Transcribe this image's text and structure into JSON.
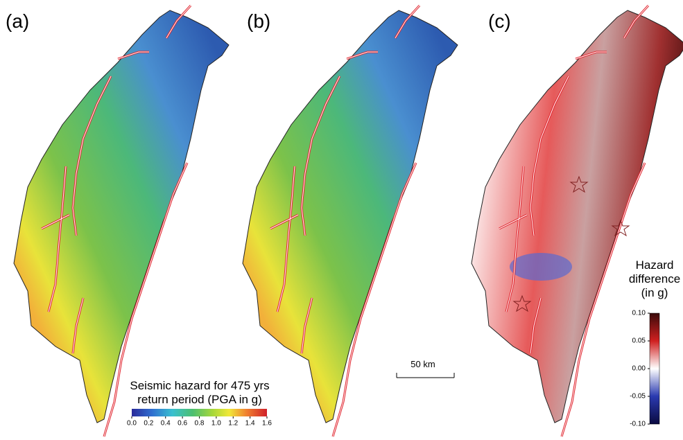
{
  "panels": [
    {
      "label": "(a)"
    },
    {
      "label": "(b)"
    },
    {
      "label": "(c)"
    }
  ],
  "hazard_colorbar": {
    "title_lines": [
      "Seismic hazard for 475 yrs",
      "return period (PGA in g)"
    ],
    "lim": [
      0,
      1.6
    ],
    "ticks": [
      {
        "value": 0,
        "label": "0.0"
      },
      {
        "value": 0.2,
        "label": "0.2"
      },
      {
        "value": 0.4,
        "label": "0.4"
      },
      {
        "value": 0.6,
        "label": "0.6"
      },
      {
        "value": 0.8,
        "label": "0.8"
      },
      {
        "value": 1,
        "label": "1.0"
      },
      {
        "value": 1.2,
        "label": "1.2"
      },
      {
        "value": 1.4,
        "label": "1.4"
      },
      1.6
    ]
  },
  "scale_bar": {
    "label": "50 km"
  },
  "difference_colorbar": {
    "title_lines": [
      "Hazard",
      "difference",
      "(in g)"
    ],
    "lim": [
      -0.1,
      0.1
    ],
    "ticks": [
      {
        "value": 0.1,
        "label": "0.10"
      },
      {
        "value": 0.05,
        "label": "0.05"
      },
      {
        "value": 0,
        "label": "0.00"
      },
      {
        "value": -0.05,
        "label": "-0.05"
      },
      {
        "value": -0.1,
        "label": "-0.10"
      }
    ]
  }
}
